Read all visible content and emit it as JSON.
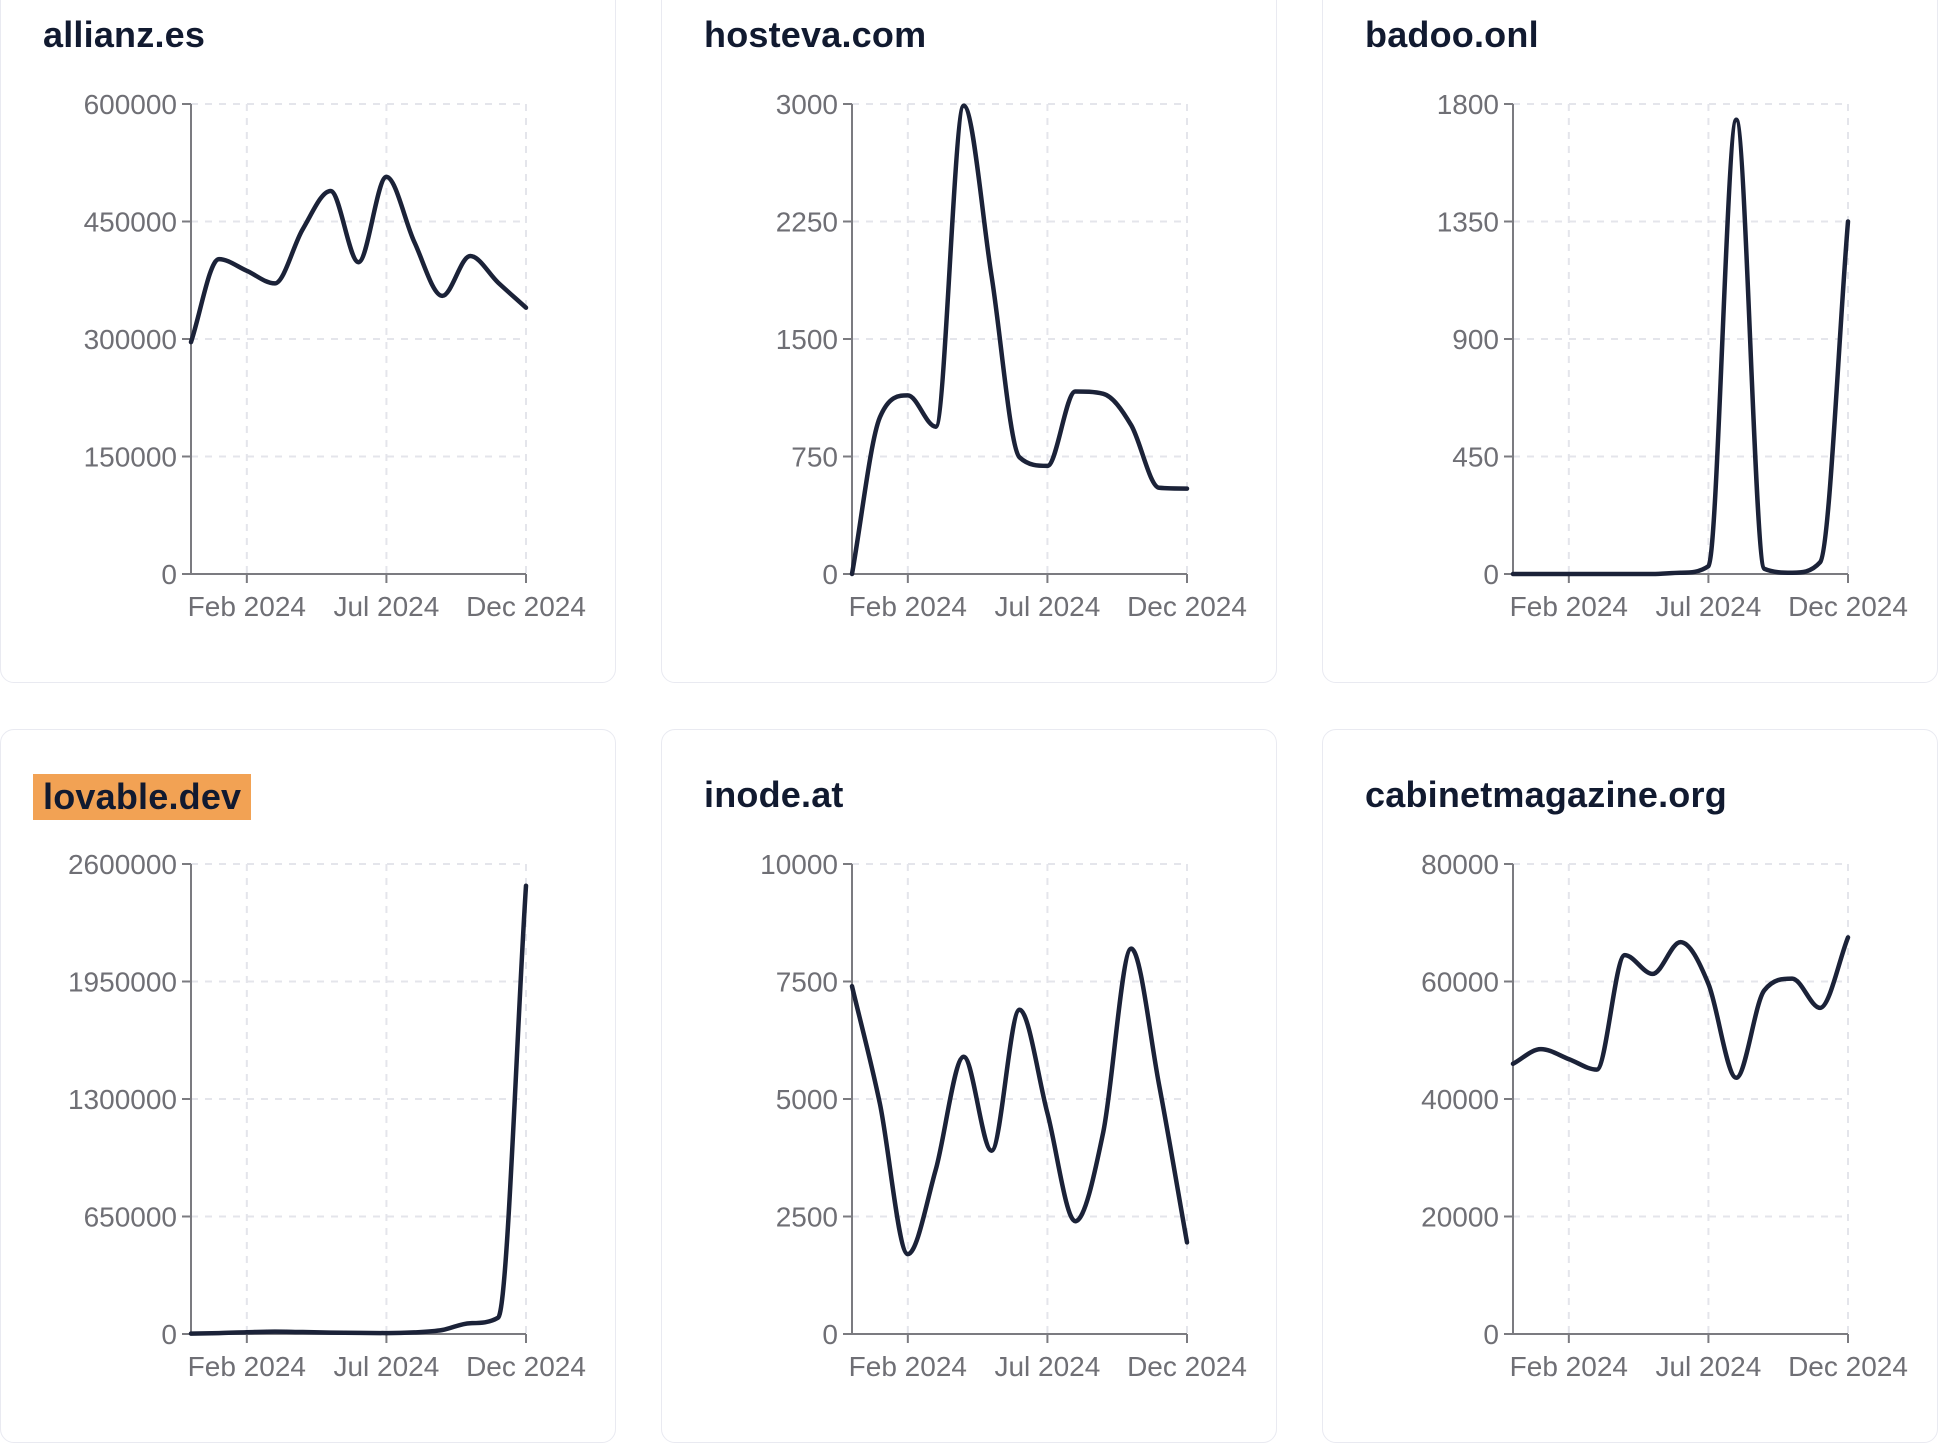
{
  "page": {
    "background": "#FFFFFF"
  },
  "colors": {
    "line": "#1B2238",
    "title": "#111A30",
    "tick_label": "#6F6F75",
    "axis": "#7B7B80",
    "gridline": "#E4E5EB",
    "card_border": "#E9EAF1",
    "card_background": "#FFFFFF",
    "highlight": "#F2A254"
  },
  "layout_hints": {
    "grid": "on",
    "legend": "none",
    "curve": "smooth"
  },
  "chart_data": [
    {
      "type": "line",
      "title": "allianz.es",
      "title_highlighted": false,
      "x_monthly": [
        "Dec 2023",
        "Jan 2024",
        "Feb 2024",
        "Mar 2024",
        "Apr 2024",
        "May 2024",
        "Jun 2024",
        "Jul 2024",
        "Aug 2024",
        "Sep 2024",
        "Oct 2024",
        "Nov 2024",
        "Dec 2024"
      ],
      "values": [
        296000,
        402000,
        387000,
        371000,
        440000,
        489000,
        398000,
        507000,
        424000,
        355000,
        406000,
        372000,
        340000
      ],
      "y_ticks": [
        0,
        150000,
        300000,
        450000,
        600000
      ],
      "ylim": [
        0,
        600000
      ],
      "x_axis_ticks": [
        {
          "month_index": 2,
          "label": "Feb 2024"
        },
        {
          "month_index": 7,
          "label": "Jul 2024"
        },
        {
          "month_index": 12,
          "label": "Dec 2024"
        }
      ]
    },
    {
      "type": "line",
      "title": "hosteva.com",
      "title_highlighted": false,
      "x_monthly": [
        "Dec 2023",
        "Jan 2024",
        "Feb 2024",
        "Mar 2024",
        "Apr 2024",
        "May 2024",
        "Jun 2024",
        "Jul 2024",
        "Aug 2024",
        "Sep 2024",
        "Oct 2024",
        "Nov 2024",
        "Dec 2024"
      ],
      "values": [
        0,
        1000,
        1140,
        940,
        2990,
        1900,
        745,
        690,
        1165,
        1150,
        950,
        550,
        545
      ],
      "y_ticks": [
        0,
        750,
        1500,
        2250,
        3000
      ],
      "ylim": [
        0,
        3000
      ],
      "x_axis_ticks": [
        {
          "month_index": 2,
          "label": "Feb 2024"
        },
        {
          "month_index": 7,
          "label": "Jul 2024"
        },
        {
          "month_index": 12,
          "label": "Dec 2024"
        }
      ]
    },
    {
      "type": "line",
      "title": "badoo.onl",
      "title_highlighted": false,
      "x_monthly": [
        "Dec 2023",
        "Jan 2024",
        "Feb 2024",
        "Mar 2024",
        "Apr 2024",
        "May 2024",
        "Jun 2024",
        "Jul 2024",
        "Aug 2024",
        "Sep 2024",
        "Oct 2024",
        "Nov 2024",
        "Dec 2024"
      ],
      "values": [
        0,
        0,
        0,
        0,
        0,
        0,
        5,
        30,
        1740,
        20,
        5,
        45,
        1350
      ],
      "y_ticks": [
        0,
        450,
        900,
        1350,
        1800
      ],
      "ylim": [
        0,
        1800
      ],
      "x_axis_ticks": [
        {
          "month_index": 2,
          "label": "Feb 2024"
        },
        {
          "month_index": 7,
          "label": "Jul 2024"
        },
        {
          "month_index": 12,
          "label": "Dec 2024"
        }
      ]
    },
    {
      "type": "line",
      "title": "lovable.dev",
      "title_highlighted": true,
      "x_monthly": [
        "Dec 2023",
        "Jan 2024",
        "Feb 2024",
        "Mar 2024",
        "Apr 2024",
        "May 2024",
        "Jun 2024",
        "Jul 2024",
        "Aug 2024",
        "Sep 2024",
        "Oct 2024",
        "Nov 2024",
        "Dec 2024"
      ],
      "values": [
        2000,
        5000,
        10000,
        13000,
        11000,
        8000,
        6000,
        5000,
        9000,
        22000,
        60000,
        90000,
        2480000
      ],
      "y_ticks": [
        0,
        650000,
        1300000,
        1950000,
        2600000
      ],
      "ylim": [
        0,
        2600000
      ],
      "x_axis_ticks": [
        {
          "month_index": 2,
          "label": "Feb 2024"
        },
        {
          "month_index": 7,
          "label": "Jul 2024"
        },
        {
          "month_index": 12,
          "label": "Dec 2024"
        }
      ]
    },
    {
      "type": "line",
      "title": "inode.at",
      "title_highlighted": false,
      "x_monthly": [
        "Dec 2023",
        "Jan 2024",
        "Feb 2024",
        "Mar 2024",
        "Apr 2024",
        "May 2024",
        "Jun 2024",
        "Jul 2024",
        "Aug 2024",
        "Sep 2024",
        "Oct 2024",
        "Nov 2024",
        "Dec 2024"
      ],
      "values": [
        7400,
        4900,
        1700,
        3500,
        5900,
        3900,
        6900,
        4700,
        2400,
        4300,
        8200,
        5300,
        1950
      ],
      "y_ticks": [
        0,
        2500,
        5000,
        7500,
        10000
      ],
      "ylim": [
        0,
        10000
      ],
      "x_axis_ticks": [
        {
          "month_index": 2,
          "label": "Feb 2024"
        },
        {
          "month_index": 7,
          "label": "Jul 2024"
        },
        {
          "month_index": 12,
          "label": "Dec 2024"
        }
      ]
    },
    {
      "type": "line",
      "title": "cabinetmagazine.org",
      "title_highlighted": false,
      "x_monthly": [
        "Dec 2023",
        "Jan 2024",
        "Feb 2024",
        "Mar 2024",
        "Apr 2024",
        "May 2024",
        "Jun 2024",
        "Jul 2024",
        "Aug 2024",
        "Sep 2024",
        "Oct 2024",
        "Nov 2024",
        "Dec 2024"
      ],
      "values": [
        46000,
        48500,
        46800,
        45000,
        64500,
        61300,
        66700,
        59600,
        43600,
        58500,
        60500,
        55500,
        67500
      ],
      "y_ticks": [
        0,
        20000,
        40000,
        60000,
        80000
      ],
      "ylim": [
        0,
        80000
      ],
      "x_axis_ticks": [
        {
          "month_index": 2,
          "label": "Feb 2024"
        },
        {
          "month_index": 7,
          "label": "Jul 2024"
        },
        {
          "month_index": 12,
          "label": "Dec 2024"
        }
      ]
    }
  ]
}
